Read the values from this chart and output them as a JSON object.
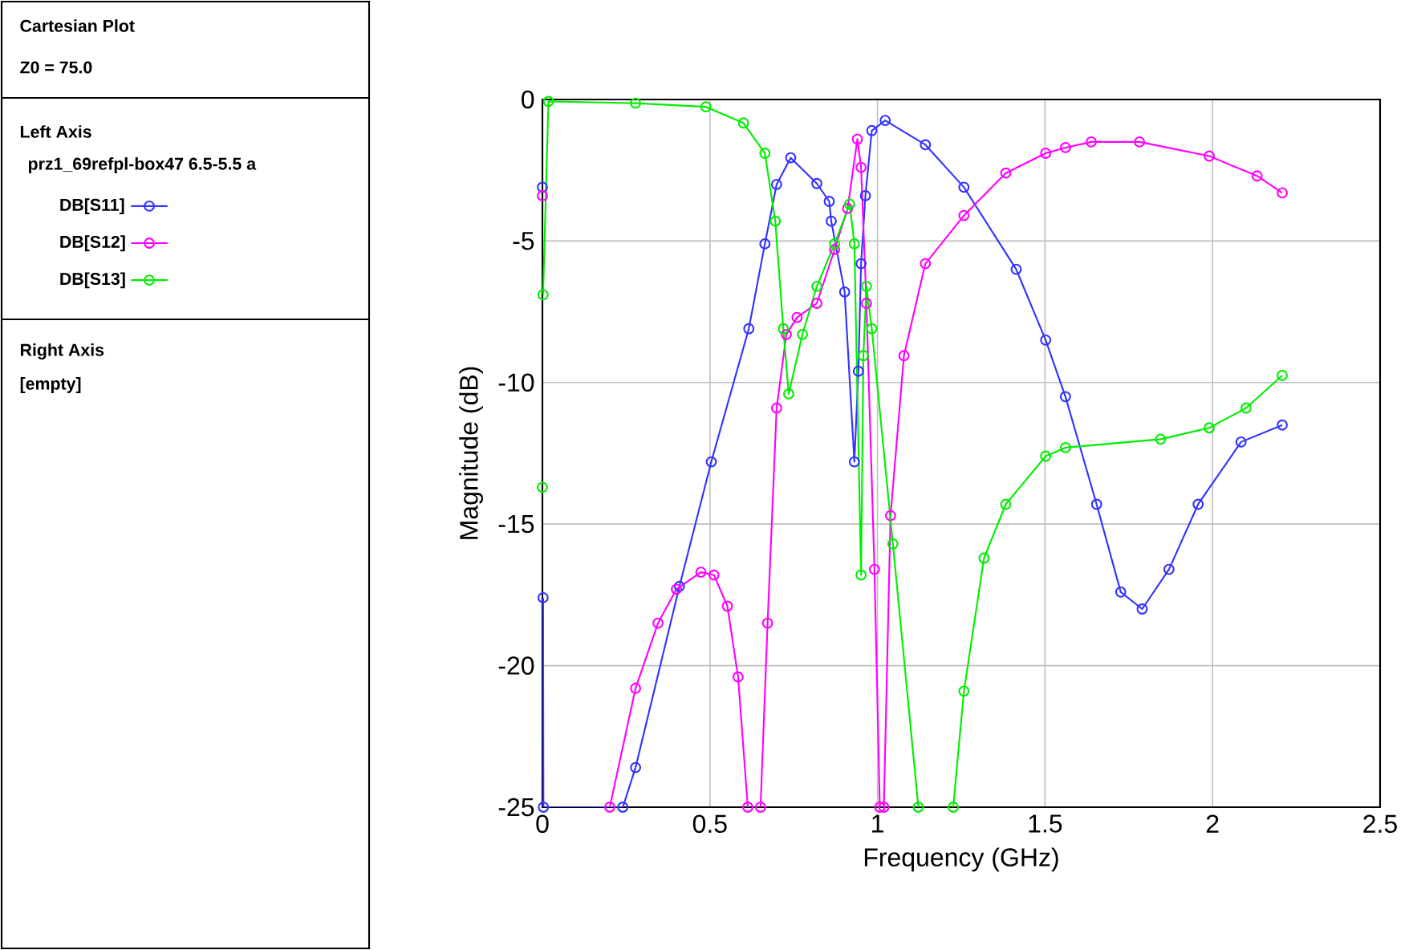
{
  "chart_data": {
    "type": "line",
    "title": "Cartesian Plot",
    "legend_title": "Left Axis",
    "annotations": [
      "Z0 = 75.0",
      "prz1_69refpl-box47 6.5-5.5 a",
      "Right Axis",
      "[empty]"
    ],
    "xlabel": "Frequency (GHz)",
    "ylabel": "Magnitude (dB)",
    "xlim": [
      0,
      2.5
    ],
    "ylim": [
      -25,
      0
    ],
    "xticks": [
      0,
      0.5,
      1,
      1.5,
      2,
      2.5
    ],
    "yticks": [
      0,
      -5,
      -10,
      -15,
      -20,
      -25
    ],
    "grid": true,
    "legend": "left",
    "marker": "circle",
    "line_style": "solid",
    "series": [
      {
        "name": "DB[S11]",
        "color": "#3333ff",
        "x": [
          0,
          0.001,
          0.002,
          0.003,
          0.24,
          0.278,
          0.409,
          0.504,
          0.616,
          0.664,
          0.699,
          0.741,
          0.819,
          0.856,
          0.862,
          0.902,
          0.931,
          0.943,
          0.951,
          0.964,
          0.983,
          1.023,
          1.143,
          1.258,
          1.414,
          1.502,
          1.561,
          1.654,
          1.726,
          1.79,
          1.87,
          1.957,
          2.085,
          2.208
        ],
        "values": [
          -3.1,
          null,
          -17.6,
          -25,
          -25,
          -23.6,
          -17.2,
          -12.8,
          -8.1,
          -5.1,
          -3.0,
          -2.06,
          -2.97,
          -3.6,
          -4.3,
          -6.8,
          -12.8,
          -9.6,
          -5.8,
          -3.4,
          -1.1,
          -0.74,
          -1.6,
          -3.1,
          -6.0,
          -8.5,
          -10.5,
          -14.3,
          -17.4,
          -18.0,
          -16.6,
          -14.3,
          -12.1,
          -11.5
        ]
      },
      {
        "name": "DB[S12]",
        "color": "#ff00ff",
        "x": [
          0,
          0.001,
          0.201,
          0.278,
          0.345,
          0.4,
          0.473,
          0.512,
          0.552,
          0.584,
          0.613,
          0.62,
          0.651,
          0.672,
          0.699,
          0.728,
          0.76,
          0.819,
          0.872,
          0.911,
          0.94,
          0.951,
          0.967,
          0.991,
          1.007,
          1.013,
          1.019,
          1.039,
          1.079,
          1.143,
          1.258,
          1.383,
          1.502,
          1.561,
          1.638,
          1.782,
          1.99,
          2.133,
          2.208
        ],
        "values": [
          -3.4,
          null,
          -25,
          -20.8,
          -18.5,
          -17.3,
          -16.7,
          -16.8,
          -17.9,
          -20.4,
          -25,
          null,
          -25,
          -18.5,
          -10.9,
          -8.3,
          -7.7,
          -7.2,
          -5.3,
          -3.85,
          -1.4,
          -2.4,
          -7.2,
          -16.6,
          -25,
          null,
          -25,
          -14.7,
          -9.05,
          -5.8,
          -4.1,
          -2.6,
          -1.9,
          -1.7,
          -1.5,
          -1.5,
          -2.0,
          -2.7,
          -3.3
        ]
      },
      {
        "name": "DB[S13]",
        "color": "#00ee00",
        "x": [
          0,
          0.001,
          0.002,
          0.018,
          0.278,
          0.488,
          0.6,
          0.664,
          0.695,
          0.719,
          0.735,
          0.776,
          0.819,
          0.872,
          0.917,
          0.931,
          0.951,
          0.958,
          0.967,
          0.983,
          1.046,
          1.122,
          1.17,
          1.226,
          1.258,
          1.318,
          1.383,
          1.502,
          1.561,
          1.845,
          1.99,
          2.1,
          2.208
        ],
        "values": [
          -13.7,
          null,
          -6.9,
          -0.07,
          -0.13,
          -0.26,
          -0.83,
          -1.9,
          -4.3,
          -8.1,
          -10.4,
          -8.3,
          -6.6,
          -5.1,
          -3.7,
          -5.1,
          -16.8,
          -9.05,
          -6.6,
          -8.1,
          -15.7,
          -25,
          null,
          -25,
          -20.9,
          -16.2,
          -14.3,
          -12.6,
          -12.3,
          -12.0,
          -11.6,
          -10.9,
          -9.75
        ]
      }
    ]
  }
}
